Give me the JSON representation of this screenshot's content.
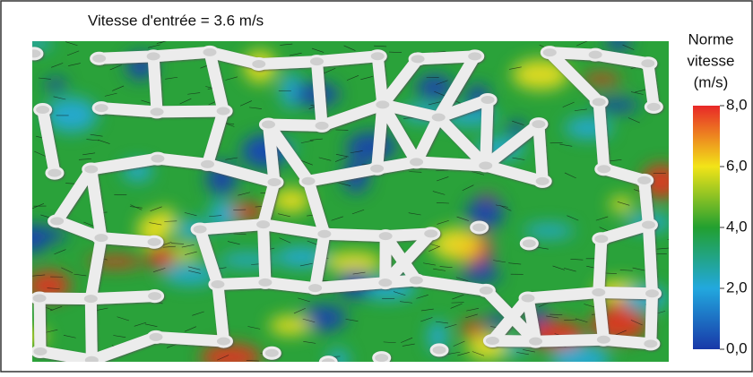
{
  "title": "Vitesse d'entrée = 3.6 m/s",
  "colorbar": {
    "title": [
      "Norme",
      "vitesse",
      "(m/s)"
    ],
    "lim": [
      0,
      8
    ],
    "ticks": [
      {
        "value": 0,
        "label": "0,0"
      },
      {
        "value": 2,
        "label": "2,0"
      },
      {
        "value": 4,
        "label": "4,0"
      },
      {
        "value": 6,
        "label": "6,0"
      },
      {
        "value": 8,
        "label": "8,0"
      }
    ],
    "colors": [
      "#1838a8",
      "#22a8de",
      "#22a030",
      "#f2e418",
      "#e82828"
    ]
  }
}
